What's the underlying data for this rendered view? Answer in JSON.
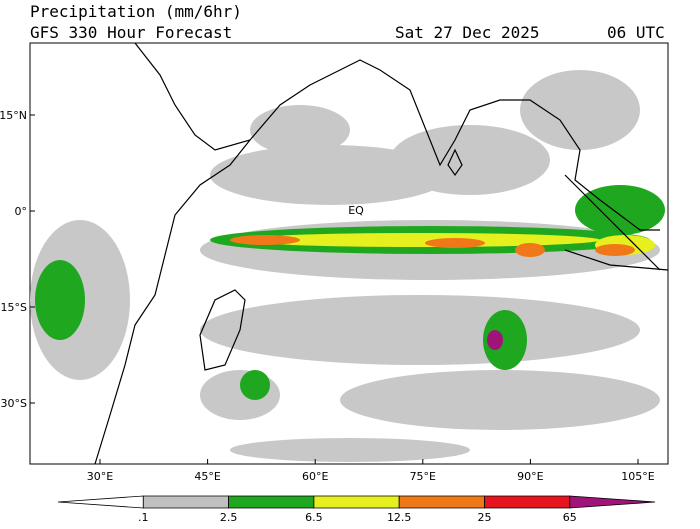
{
  "header": {
    "title": "Precipitation (mm/6hr)",
    "subtitle": "GFS 330 Hour Forecast",
    "date": "Sat 27 Dec 2025",
    "time": "06 UTC"
  },
  "map": {
    "lat_labels": [
      "15°N",
      "0°",
      "15°S",
      "30°S"
    ],
    "lon_labels": [
      "30°E",
      "45°E",
      "60°E",
      "75°E",
      "90°E",
      "105°E"
    ],
    "equator_label": "EQ"
  },
  "colorbar": {
    "labels": [
      ".1",
      "2.5",
      "6.5",
      "12.5",
      "25",
      "65"
    ],
    "colors": [
      "#ffffff",
      "#c0c0c0",
      "#1fa81f",
      "#e6f01e",
      "#f07818",
      "#e6141e",
      "#a0147a"
    ]
  }
}
